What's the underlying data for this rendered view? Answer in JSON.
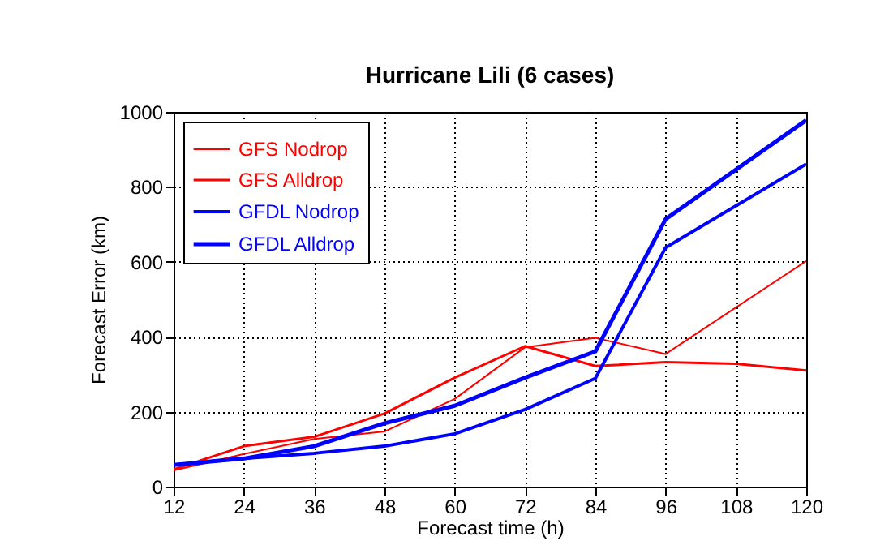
{
  "chart_data": {
    "type": "line",
    "title": "Hurricane Lili (6 cases)",
    "xlabel": "Forecast time (h)",
    "ylabel": "Forecast Error (km)",
    "xlim": [
      12,
      120
    ],
    "xticks": [
      12,
      24,
      36,
      48,
      60,
      72,
      84,
      96,
      108,
      120
    ],
    "ylim": [
      0,
      1000
    ],
    "yticks": [
      0,
      200,
      400,
      600,
      800,
      1000
    ],
    "grid": true,
    "legend": "top left",
    "marker": "none",
    "line_style": "solid",
    "series": [
      {
        "name": "GFS Nodrop",
        "color": "#ff0000",
        "x": [
          12,
          24,
          36,
          48,
          60,
          72,
          84,
          96,
          120
        ],
        "values": [
          43,
          87,
          127,
          147,
          234,
          372,
          397,
          354,
          602
        ]
      },
      {
        "name": "GFS Alldrop",
        "color": "#ff0000",
        "x": [
          12,
          24,
          36,
          48,
          60,
          72,
          84,
          96,
          108,
          120
        ],
        "values": [
          46,
          108,
          133,
          195,
          291,
          375,
          322,
          332,
          328,
          310
        ]
      },
      {
        "name": "GFDL Nodrop",
        "color": "#0000ff",
        "x": [
          12,
          24,
          36,
          48,
          60,
          72,
          84,
          96,
          120
        ],
        "values": [
          58,
          75,
          89,
          108,
          141,
          206,
          289,
          638,
          861
        ]
      },
      {
        "name": "GFDL Alldrop",
        "color": "#0000ff",
        "x": [
          12,
          24,
          36,
          48,
          60,
          72,
          84,
          96,
          120
        ],
        "values": [
          58,
          75,
          108,
          169,
          216,
          291,
          361,
          714,
          978
        ]
      }
    ]
  }
}
